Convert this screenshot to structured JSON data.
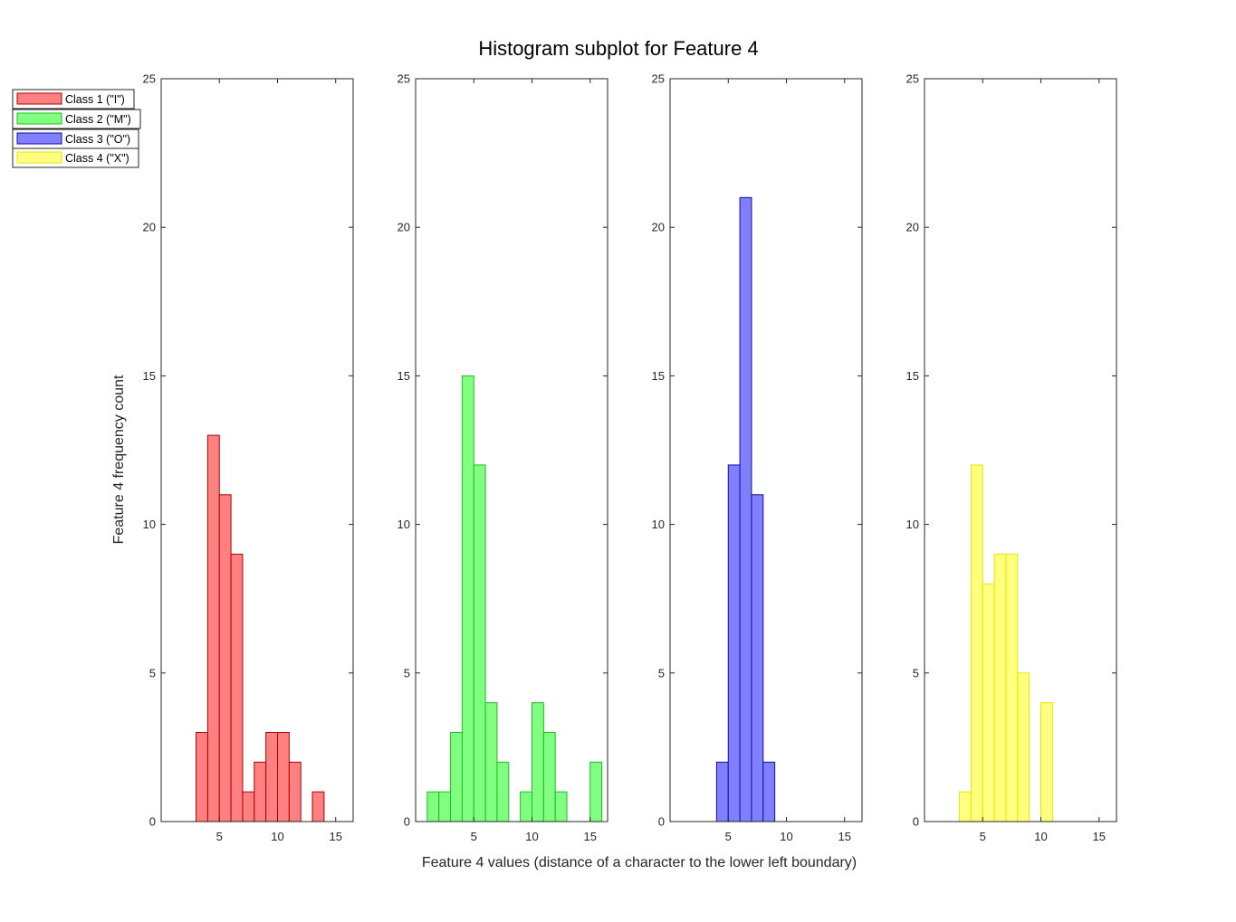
{
  "chart_data": {
    "type": "bar",
    "title": "Histogram subplot for Feature 4",
    "xlabel": "Feature 4 values (distance of a character to the lower left boundary)",
    "ylabel": "Feature 4 frequency count",
    "xlim": [
      0,
      16.5
    ],
    "ylim": [
      0,
      25
    ],
    "xticks": [
      5,
      10,
      15
    ],
    "yticks": [
      0,
      5,
      10,
      15,
      20,
      25
    ],
    "grid": false,
    "legend_position": "top-left",
    "bin_width": 1,
    "series": [
      {
        "name": "Class 1 (\"I\")",
        "color": "#ff8080",
        "edge": "#b00000",
        "bins": [
          {
            "x": 3,
            "count": 3
          },
          {
            "x": 4,
            "count": 13
          },
          {
            "x": 5,
            "count": 11
          },
          {
            "x": 6,
            "count": 9
          },
          {
            "x": 7,
            "count": 1
          },
          {
            "x": 8,
            "count": 2
          },
          {
            "x": 9,
            "count": 3
          },
          {
            "x": 10,
            "count": 3
          },
          {
            "x": 11,
            "count": 2
          },
          {
            "x": 13,
            "count": 1
          }
        ]
      },
      {
        "name": "Class 2 (\"M\")",
        "color": "#80ff80",
        "edge": "#22bb22",
        "bins": [
          {
            "x": 1,
            "count": 1
          },
          {
            "x": 2,
            "count": 1
          },
          {
            "x": 3,
            "count": 3
          },
          {
            "x": 4,
            "count": 15
          },
          {
            "x": 5,
            "count": 12
          },
          {
            "x": 6,
            "count": 4
          },
          {
            "x": 7,
            "count": 2
          },
          {
            "x": 9,
            "count": 1
          },
          {
            "x": 10,
            "count": 4
          },
          {
            "x": 11,
            "count": 3
          },
          {
            "x": 12,
            "count": 1
          },
          {
            "x": 15,
            "count": 2
          }
        ]
      },
      {
        "name": "Class 3 (\"O\")",
        "color": "#8080ff",
        "edge": "#1010a0",
        "bins": [
          {
            "x": 4,
            "count": 2
          },
          {
            "x": 5,
            "count": 12
          },
          {
            "x": 6,
            "count": 21
          },
          {
            "x": 7,
            "count": 11
          },
          {
            "x": 8,
            "count": 2
          }
        ]
      },
      {
        "name": "Class 4 (\"X\")",
        "color": "#ffff80",
        "edge": "#e6e600",
        "bins": [
          {
            "x": 3,
            "count": 1
          },
          {
            "x": 4,
            "count": 12
          },
          {
            "x": 5,
            "count": 8
          },
          {
            "x": 6,
            "count": 9
          },
          {
            "x": 7,
            "count": 9
          },
          {
            "x": 8,
            "count": 5
          },
          {
            "x": 10,
            "count": 4
          }
        ]
      }
    ]
  }
}
